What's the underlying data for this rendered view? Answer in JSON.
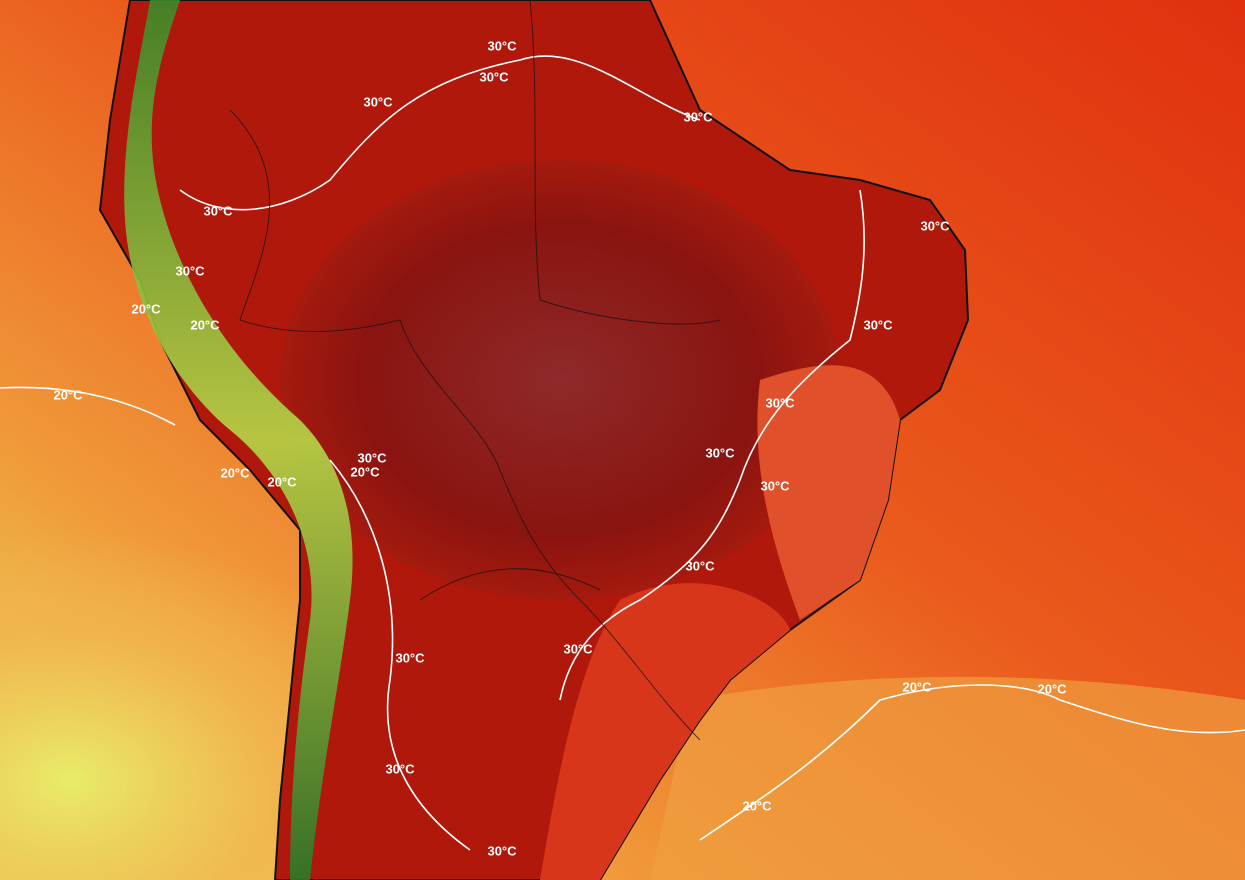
{
  "isotherm_labels": [
    "30°C",
    "30°C",
    "30°C",
    "30°C",
    "30°C",
    "30°C",
    "30°C",
    "30°C",
    "30°C",
    "30°C",
    "30°C",
    "30°C",
    "30°C",
    "30°C",
    "30°C",
    "30°C",
    "30°C",
    "20°C",
    "20°C",
    "20°C",
    "20°C",
    "20°C",
    "20°C",
    "20°C",
    "20°C",
    "20°C"
  ]
}
